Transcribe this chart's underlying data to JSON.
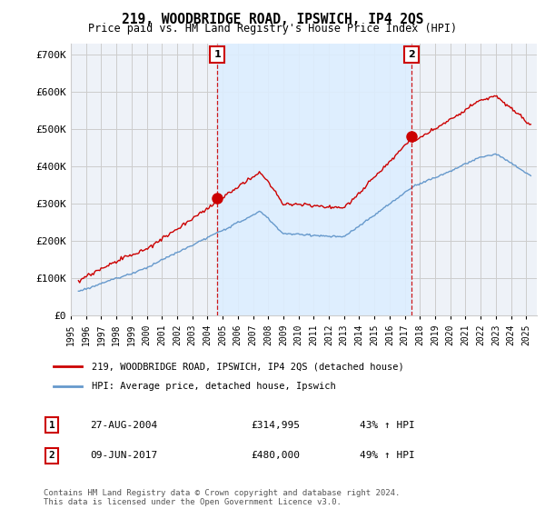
{
  "title": "219, WOODBRIDGE ROAD, IPSWICH, IP4 2QS",
  "subtitle": "Price paid vs. HM Land Registry's House Price Index (HPI)",
  "ylabel_ticks": [
    "£0",
    "£100K",
    "£200K",
    "£300K",
    "£400K",
    "£500K",
    "£600K",
    "£700K"
  ],
  "ytick_values": [
    0,
    100000,
    200000,
    300000,
    400000,
    500000,
    600000,
    700000
  ],
  "ylim": [
    0,
    730000
  ],
  "xlim_start": 1995.3,
  "xlim_end": 2025.7,
  "sale1_x": 2004.65,
  "sale1_y": 314995,
  "sale2_x": 2017.44,
  "sale2_y": 480000,
  "red_color": "#cc0000",
  "blue_color": "#6699cc",
  "shade_color": "#ddeeff",
  "grid_color": "#cccccc",
  "bg_color": "#eef2f8",
  "legend_label_red": "219, WOODBRIDGE ROAD, IPSWICH, IP4 2QS (detached house)",
  "legend_label_blue": "HPI: Average price, detached house, Ipswich",
  "footnote": "Contains HM Land Registry data © Crown copyright and database right 2024.\nThis data is licensed under the Open Government Licence v3.0.",
  "table_row1": [
    "1",
    "27-AUG-2004",
    "£314,995",
    "43% ↑ HPI"
  ],
  "table_row2": [
    "2",
    "09-JUN-2017",
    "£480,000",
    "49% ↑ HPI"
  ]
}
